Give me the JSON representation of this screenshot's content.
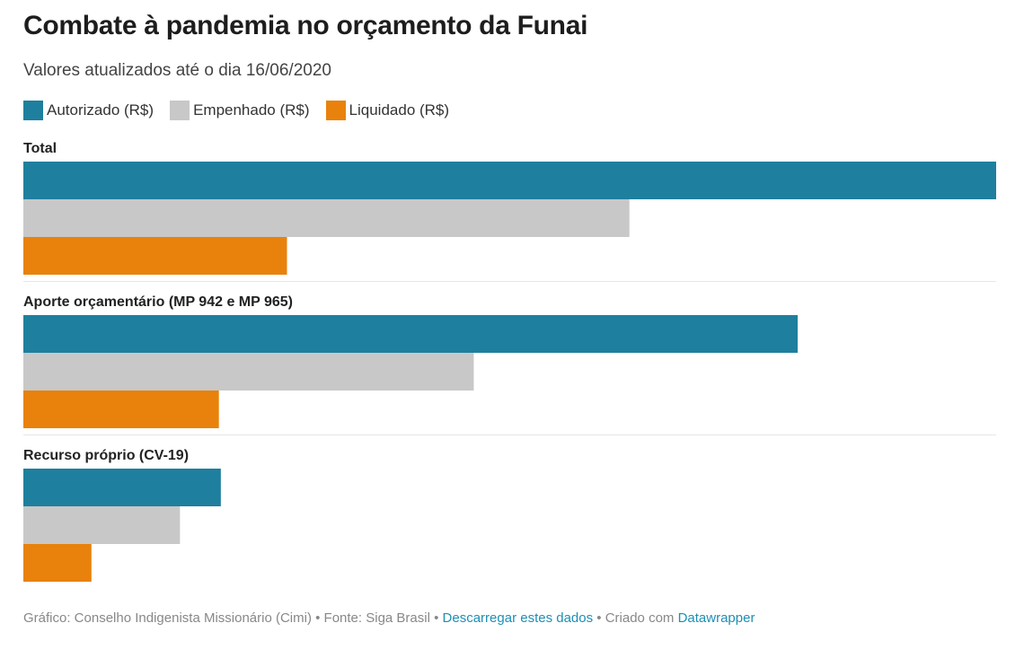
{
  "chart_data": {
    "type": "bar",
    "orientation": "horizontal",
    "title": "Combate à pandemia no orçamento da Funai",
    "subtitle": "Valores atualizados até o dia 16/06/2020",
    "categories": [
      "Total",
      "Aporte orçamentário (MP 942 e MP 965)",
      "Recurso próprio (CV-19)"
    ],
    "series": [
      {
        "name": "Autorizado (R$)",
        "color": "#1f7f9e",
        "values": [
          100,
          79.6,
          20.3
        ]
      },
      {
        "name": "Empenhado (R$)",
        "color": "#c8c8c8",
        "values": [
          62.3,
          46.3,
          16.1
        ]
      },
      {
        "name": "Liquidado (R$)",
        "color": "#e8820c",
        "values": [
          27.1,
          20.1,
          7.0
        ]
      }
    ],
    "xlim": [
      0,
      100
    ],
    "xlabel": "",
    "ylabel": "",
    "grid": false,
    "legend_position": "top-left"
  },
  "footer": {
    "prefix": "Gráfico: Conselho Indigenista Missionário (Cimi) • Fonte: Siga Brasil • ",
    "download_link": "Descarregar estes dados",
    "middle": " • Criado com ",
    "datawrapper_link": "Datawrapper"
  }
}
